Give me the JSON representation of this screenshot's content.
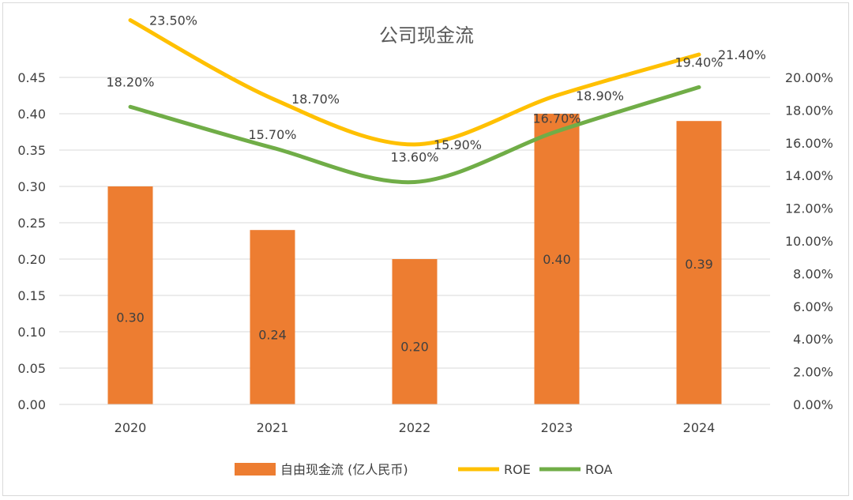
{
  "chart_data": {
    "type": "bar",
    "title": "公司现金流",
    "categories": [
      "2020",
      "2021",
      "2022",
      "2023",
      "2024"
    ],
    "bar_series": {
      "name": "自由现金流 (亿人民币)",
      "values": [
        0.3,
        0.24,
        0.2,
        0.4,
        0.39
      ],
      "labels": [
        "0.30",
        "0.24",
        "0.20",
        "0.40",
        "0.39"
      ],
      "color": "#ED7D31"
    },
    "line_series": [
      {
        "name": "ROE",
        "values": [
          23.5,
          18.7,
          15.9,
          18.9,
          21.4
        ],
        "labels": [
          "23.50%",
          "18.70%",
          "15.90%",
          "18.90%",
          "21.40%"
        ],
        "color": "#FFC000",
        "axis": "right"
      },
      {
        "name": "ROA",
        "values": [
          18.2,
          15.7,
          13.6,
          16.7,
          19.4
        ],
        "labels": [
          "18.20%",
          "15.70%",
          "13.60%",
          "16.70%",
          "19.40%"
        ],
        "color": "#70AD47",
        "axis": "right"
      }
    ],
    "y_left": {
      "range": [
        0,
        0.45
      ],
      "ticks": [
        "0.00",
        "0.05",
        "0.10",
        "0.15",
        "0.20",
        "0.25",
        "0.30",
        "0.35",
        "0.40",
        "0.45"
      ]
    },
    "y_right": {
      "range": [
        0,
        20
      ],
      "ticks": [
        "0.00%",
        "2.00%",
        "4.00%",
        "6.00%",
        "8.00%",
        "10.00%",
        "12.00%",
        "14.00%",
        "16.00%",
        "18.00%",
        "20.00%"
      ]
    },
    "grid": true,
    "legend": "bottom"
  }
}
